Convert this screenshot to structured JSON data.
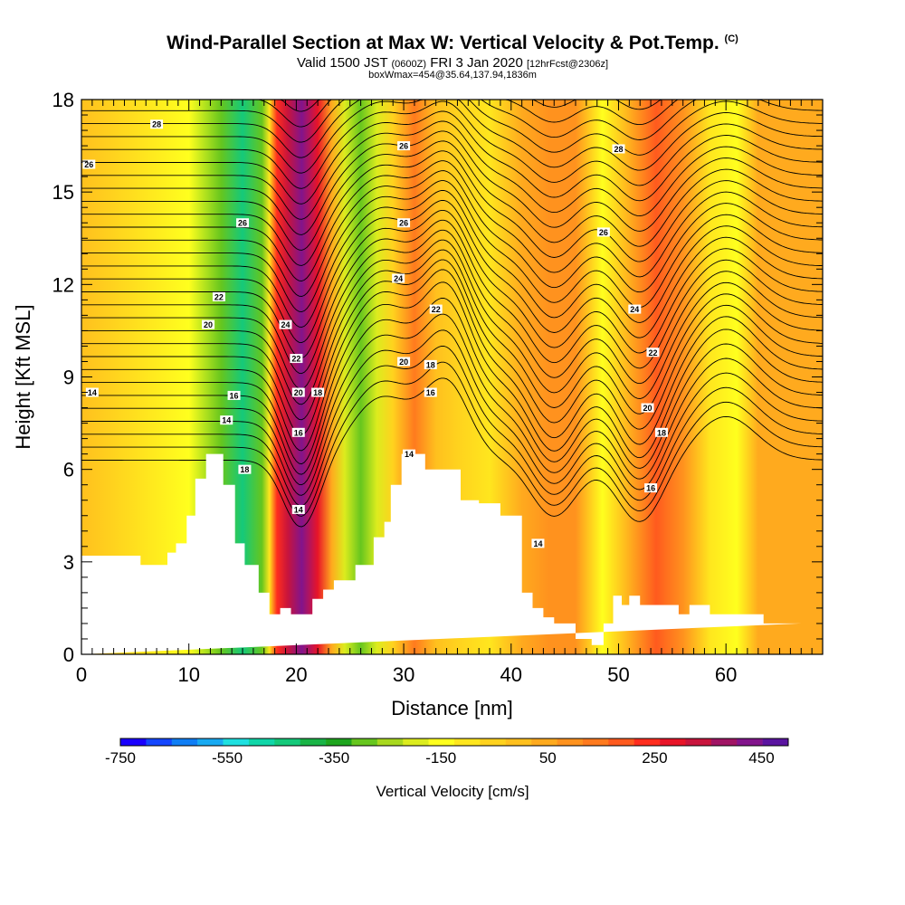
{
  "title": {
    "main": "Wind-Parallel Section at Max W: Vertical Velocity & Pot.Temp.",
    "copyright": "(C)",
    "valid_prefix": "Valid 1500 JST",
    "valid_utc": "(0600Z)",
    "valid_date": "FRI 3 Jan 2020",
    "forecast": "[12hrFcst@2306z]",
    "box_info": "boxWmax=454@35.64,137.94,1836m"
  },
  "colors": {
    "terrain": "#ffffff",
    "contour": "#000000",
    "scale": [
      "#1a00ff",
      "#1446ff",
      "#0f7ef5",
      "#18aaf2",
      "#1ee0e0",
      "#10d6a8",
      "#14c97a",
      "#19b446",
      "#1ea51e",
      "#66c61e",
      "#a8d81e",
      "#dcec1e",
      "#ffff1e",
      "#ffe61e",
      "#ffd21e",
      "#ffc01e",
      "#ffaa1e",
      "#ff921e",
      "#ff7a1e",
      "#ff5a1e",
      "#ff2d1e",
      "#e81428",
      "#c8143c",
      "#a01464",
      "#82148c",
      "#5a14a0"
    ]
  },
  "chart_data": {
    "type": "heatmap",
    "title": "Wind-Parallel Section at Max W: Vertical Velocity & Pot.Temp.",
    "xlabel": "Distance [nm]",
    "ylabel": "Height [Kft MSL]",
    "xlim": [
      0,
      69
    ],
    "ylim": [
      0,
      18
    ],
    "x_ticks": [
      0,
      10,
      20,
      30,
      40,
      50,
      60
    ],
    "y_ticks": [
      0,
      3,
      6,
      9,
      12,
      15,
      18
    ],
    "colorbar": {
      "label": "Vertical Velocity [cm/s]",
      "min": -750,
      "max": 500,
      "step": 50,
      "tick_values": [
        -750,
        -550,
        -350,
        -150,
        50,
        250,
        450
      ]
    },
    "velocity_bands": [
      {
        "x": 0,
        "w": 10
      },
      {
        "x": 10,
        "w": -120
      },
      {
        "x": 13,
        "w": -300
      },
      {
        "x": 15,
        "w": -450
      },
      {
        "x": 16.8,
        "w": -260
      },
      {
        "x": 17.5,
        "w": -60
      },
      {
        "x": 18.2,
        "w": 250
      },
      {
        "x": 19.2,
        "w": 350
      },
      {
        "x": 20.5,
        "w": 454
      },
      {
        "x": 22,
        "w": 300
      },
      {
        "x": 23.3,
        "w": 80
      },
      {
        "x": 24.5,
        "w": -200
      },
      {
        "x": 26,
        "w": -260
      },
      {
        "x": 27.5,
        "w": -180
      },
      {
        "x": 29,
        "w": -40
      },
      {
        "x": 31,
        "w": 150
      },
      {
        "x": 33,
        "w": 30
      },
      {
        "x": 35,
        "w": -40
      },
      {
        "x": 38,
        "w": -80
      },
      {
        "x": 41,
        "w": 60
      },
      {
        "x": 43.5,
        "w": 120
      },
      {
        "x": 46,
        "w": 100
      },
      {
        "x": 48.5,
        "w": -110
      },
      {
        "x": 50.5,
        "w": 40
      },
      {
        "x": 53.5,
        "w": 200
      },
      {
        "x": 56,
        "w": 120
      },
      {
        "x": 58.5,
        "w": -60
      },
      {
        "x": 61,
        "w": -110
      },
      {
        "x": 63,
        "w": 60
      },
      {
        "x": 66,
        "w": 80
      },
      {
        "x": 69,
        "w": 60
      }
    ],
    "terrain": {
      "x": [
        0,
        5.5,
        5.5,
        8,
        8,
        8.8,
        8.8,
        9.8,
        9.8,
        10.6,
        10.6,
        11.6,
        11.6,
        13.2,
        13.2,
        14.3,
        14.3,
        15.2,
        15.2,
        16.5,
        16.5,
        17.5,
        17.5,
        18.5,
        18.5,
        19.5,
        19.5,
        21.5,
        21.5,
        22.5,
        22.5,
        23.5,
        23.5,
        25.5,
        25.5,
        27.2,
        27.2,
        28.2,
        28.2,
        28.8,
        28.8,
        29.8,
        29.8,
        32,
        32,
        35.3,
        35.3,
        37,
        37,
        39,
        39,
        41,
        41,
        42,
        42,
        43,
        43,
        44,
        44,
        46,
        46,
        47.5,
        47.5,
        48.6,
        48.6,
        49.5,
        49.5,
        50.3,
        50.3,
        51,
        51,
        52,
        52,
        55.6,
        55.6,
        56.6,
        56.6,
        58.5,
        58.5,
        63.5,
        63.5,
        67,
        67,
        69
      ],
      "y": [
        3.2,
        3.2,
        2.9,
        2.9,
        3.3,
        3.3,
        3.6,
        3.6,
        4.5,
        4.5,
        5.7,
        5.7,
        6.5,
        6.5,
        5.5,
        5.5,
        3.6,
        3.6,
        2.9,
        2.9,
        2.0,
        2.0,
        1.3,
        1.3,
        1.5,
        1.5,
        1.3,
        1.3,
        1.8,
        1.8,
        2.1,
        2.1,
        2.4,
        2.4,
        2.9,
        2.9,
        3.8,
        3.8,
        4.3,
        4.3,
        5.5,
        5.5,
        6.5,
        6.5,
        6.0,
        6.0,
        5.0,
        5.0,
        4.9,
        4.9,
        4.5,
        4.5,
        2.0,
        2.0,
        1.5,
        1.5,
        1.2,
        1.2,
        1.0,
        1.0,
        0.5,
        0.5,
        0.3,
        0.3,
        1.0,
        1.0,
        1.9,
        1.9,
        1.6,
        1.6,
        1.9,
        1.9,
        1.6,
        1.6,
        1.3,
        1.3,
        1.6,
        1.6,
        1.3,
        1.3,
        1.0,
        1.0,
        1.0
      ]
    },
    "pot_temp_labels": [
      {
        "value": "28",
        "x": 7,
        "y": 17.2
      },
      {
        "value": "26",
        "x": 0.7,
        "y": 15.9
      },
      {
        "value": "26",
        "x": 15.0,
        "y": 14.0
      },
      {
        "value": "22",
        "x": 12.8,
        "y": 11.6
      },
      {
        "value": "20",
        "x": 11.8,
        "y": 10.7
      },
      {
        "value": "14",
        "x": 1.0,
        "y": 8.5
      },
      {
        "value": "16",
        "x": 14.2,
        "y": 8.4
      },
      {
        "value": "14",
        "x": 13.5,
        "y": 7.6
      },
      {
        "value": "18",
        "x": 15.2,
        "y": 6.0
      },
      {
        "value": "24",
        "x": 19.0,
        "y": 10.7
      },
      {
        "value": "22",
        "x": 20.0,
        "y": 9.6
      },
      {
        "value": "20",
        "x": 20.2,
        "y": 8.5
      },
      {
        "value": "18",
        "x": 22.0,
        "y": 8.5
      },
      {
        "value": "16",
        "x": 20.2,
        "y": 7.2
      },
      {
        "value": "14",
        "x": 20.2,
        "y": 4.7
      },
      {
        "value": "26",
        "x": 30.0,
        "y": 16.5
      },
      {
        "value": "26",
        "x": 30.0,
        "y": 14.0
      },
      {
        "value": "24",
        "x": 29.5,
        "y": 12.2
      },
      {
        "value": "22",
        "x": 33.0,
        "y": 11.2
      },
      {
        "value": "20",
        "x": 30.0,
        "y": 9.5
      },
      {
        "value": "18",
        "x": 32.5,
        "y": 9.4
      },
      {
        "value": "16",
        "x": 32.5,
        "y": 8.5
      },
      {
        "value": "14",
        "x": 30.5,
        "y": 6.5
      },
      {
        "value": "14",
        "x": 42.5,
        "y": 3.6
      },
      {
        "value": "28",
        "x": 50.0,
        "y": 16.4
      },
      {
        "value": "26",
        "x": 48.6,
        "y": 13.7
      },
      {
        "value": "24",
        "x": 51.5,
        "y": 11.2
      },
      {
        "value": "22",
        "x": 53.2,
        "y": 9.8
      },
      {
        "value": "20",
        "x": 52.7,
        "y": 8.0
      },
      {
        "value": "18",
        "x": 54.0,
        "y": 7.2
      },
      {
        "value": "16",
        "x": 53.0,
        "y": 5.4
      }
    ]
  }
}
